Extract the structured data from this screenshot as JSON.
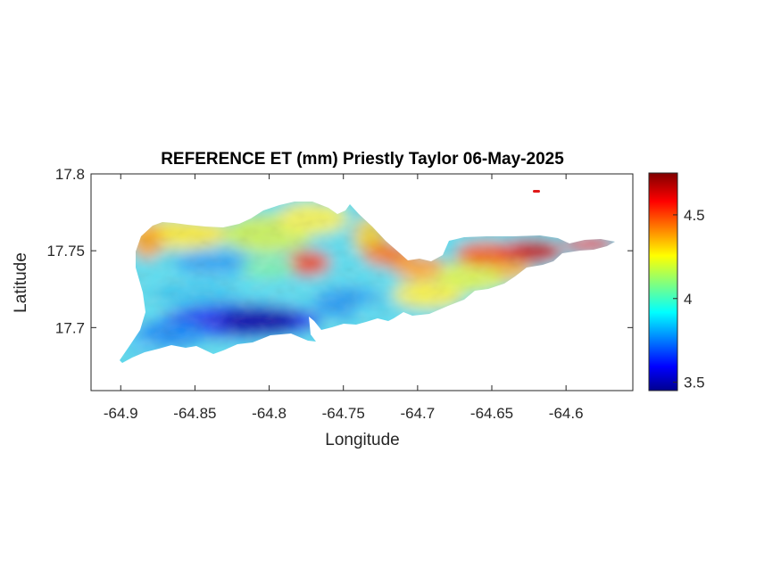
{
  "chart_data": {
    "type": "heatmap",
    "title": "REFERENCE ET (mm) Priestly Taylor 06-May-2025",
    "xlabel": "Longitude",
    "ylabel": "Latitude",
    "xlim": [
      -64.92,
      -64.555
    ],
    "ylim": [
      17.659,
      17.8
    ],
    "xticks": [
      -64.9,
      -64.85,
      -64.8,
      -64.75,
      -64.7,
      -64.65,
      -64.6
    ],
    "xtick_labels": [
      "-64.9",
      "-64.85",
      "-64.8",
      "-64.75",
      "-64.7",
      "-64.65",
      "-64.6"
    ],
    "yticks": [
      17.7,
      17.75,
      17.8
    ],
    "ytick_labels": [
      "17.7",
      "17.75",
      "17.8"
    ],
    "colorbar": {
      "colormap": "jet",
      "clim": [
        3.45,
        4.75
      ],
      "ticks": [
        3.5,
        4,
        4.5
      ],
      "tick_labels": [
        "3.5",
        "4",
        "4.5"
      ]
    },
    "grid": false,
    "regions": [
      {
        "name": "",
        "lon": -64.9,
        "lat": 17.77,
        "value": 4.25
      },
      {
        "name": "",
        "lon": -64.8,
        "lat": 17.7,
        "value": 3.5
      }
    ]
  }
}
